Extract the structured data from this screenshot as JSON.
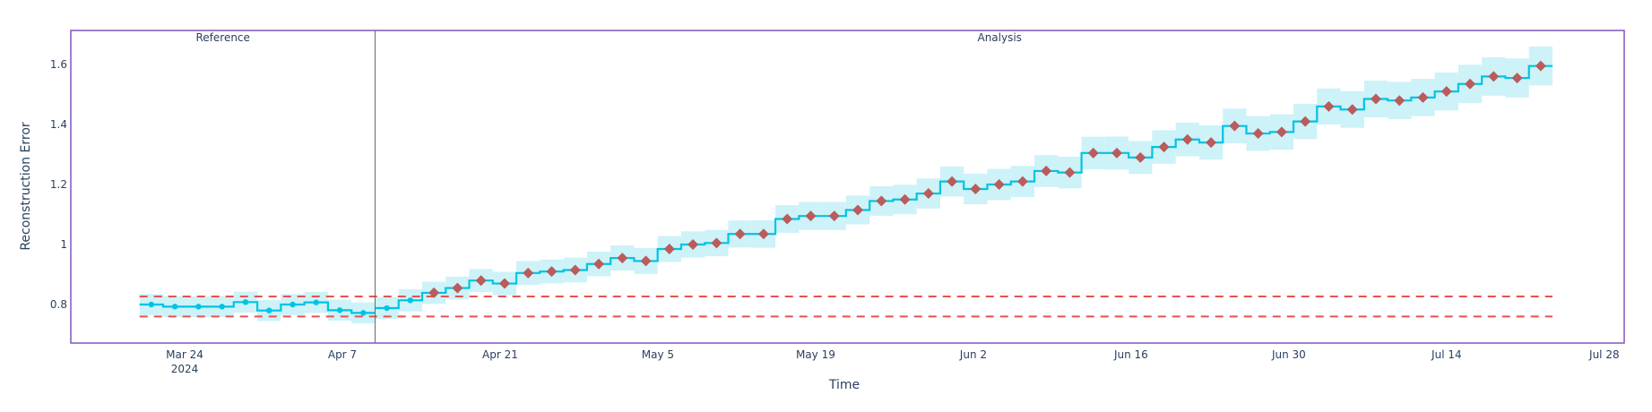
{
  "chart_data": {
    "type": "line",
    "title": "",
    "xlabel": "Time",
    "ylabel": "Reconstruction Error",
    "ylim": [
      0.672,
      1.712
    ],
    "x_range": [
      "2024-03-13",
      "2024-07-29"
    ],
    "grid": false,
    "x_ticks": [
      {
        "date": "2024-03-24",
        "label": "Mar 24",
        "sublabel": "2024"
      },
      {
        "date": "2024-04-07",
        "label": "Apr 7"
      },
      {
        "date": "2024-04-21",
        "label": "Apr 21"
      },
      {
        "date": "2024-05-05",
        "label": "May 5"
      },
      {
        "date": "2024-05-19",
        "label": "May 19"
      },
      {
        "date": "2024-06-02",
        "label": "Jun 2"
      },
      {
        "date": "2024-06-16",
        "label": "Jun 16"
      },
      {
        "date": "2024-06-30",
        "label": "Jun 30"
      },
      {
        "date": "2024-07-14",
        "label": "Jul 14"
      },
      {
        "date": "2024-07-28",
        "label": "Jul 28"
      }
    ],
    "y_ticks": [
      {
        "value": 0.8,
        "label": "0.8"
      },
      {
        "value": 1.0,
        "label": "1"
      },
      {
        "value": 1.2,
        "label": "1.2"
      },
      {
        "value": 1.4,
        "label": "1.4"
      },
      {
        "value": 1.6,
        "label": "1.6"
      }
    ],
    "sections": [
      {
        "label": "Reference",
        "chunks": 10
      },
      {
        "label": "Analysis",
        "chunks": 50
      }
    ],
    "chunk_start": "2024-03-20",
    "chunk_days": 2.09,
    "thresholds": {
      "upper": 0.827,
      "lower": 0.76
    },
    "series": [
      {
        "name": "Reference",
        "values": [
          0.8,
          0.793,
          0.793,
          0.793,
          0.808,
          0.78,
          0.8,
          0.807,
          0.781,
          0.772
        ],
        "band_halfwidth": [
          0.035,
          0.035,
          0.035,
          0.035,
          0.035,
          0.035,
          0.035,
          0.035,
          0.035,
          0.035
        ]
      },
      {
        "name": "Analysis",
        "values": [
          0.788,
          0.814,
          0.839,
          0.855,
          0.88,
          0.87,
          0.905,
          0.91,
          0.915,
          0.935,
          0.955,
          0.945,
          0.985,
          1.0,
          1.005,
          1.035,
          1.035,
          1.085,
          1.095,
          1.095,
          1.115,
          1.145,
          1.15,
          1.17,
          1.21,
          1.185,
          1.2,
          1.21,
          1.245,
          1.24,
          1.305,
          1.305,
          1.29,
          1.325,
          1.35,
          1.34,
          1.395,
          1.37,
          1.375,
          1.41,
          1.46,
          1.45,
          1.485,
          1.48,
          1.49,
          1.51,
          1.535,
          1.56,
          1.555,
          1.595
        ],
        "band_halfwidth": [
          0.036,
          0.037,
          0.037,
          0.038,
          0.038,
          0.039,
          0.04,
          0.04,
          0.041,
          0.041,
          0.042,
          0.043,
          0.043,
          0.044,
          0.044,
          0.045,
          0.046,
          0.046,
          0.047,
          0.047,
          0.048,
          0.049,
          0.049,
          0.05,
          0.05,
          0.051,
          0.052,
          0.052,
          0.053,
          0.053,
          0.054,
          0.055,
          0.055,
          0.056,
          0.056,
          0.057,
          0.058,
          0.058,
          0.059,
          0.059,
          0.06,
          0.061,
          0.061,
          0.062,
          0.062,
          0.063,
          0.064,
          0.064,
          0.065,
          0.065
        ]
      }
    ],
    "colors": {
      "line": "#00c3e3",
      "band": "#cdf2f8",
      "alert_marker": "#b85c5c",
      "threshold": "#e8524f",
      "frame": "#7e57c2",
      "divider": "#666666"
    }
  }
}
